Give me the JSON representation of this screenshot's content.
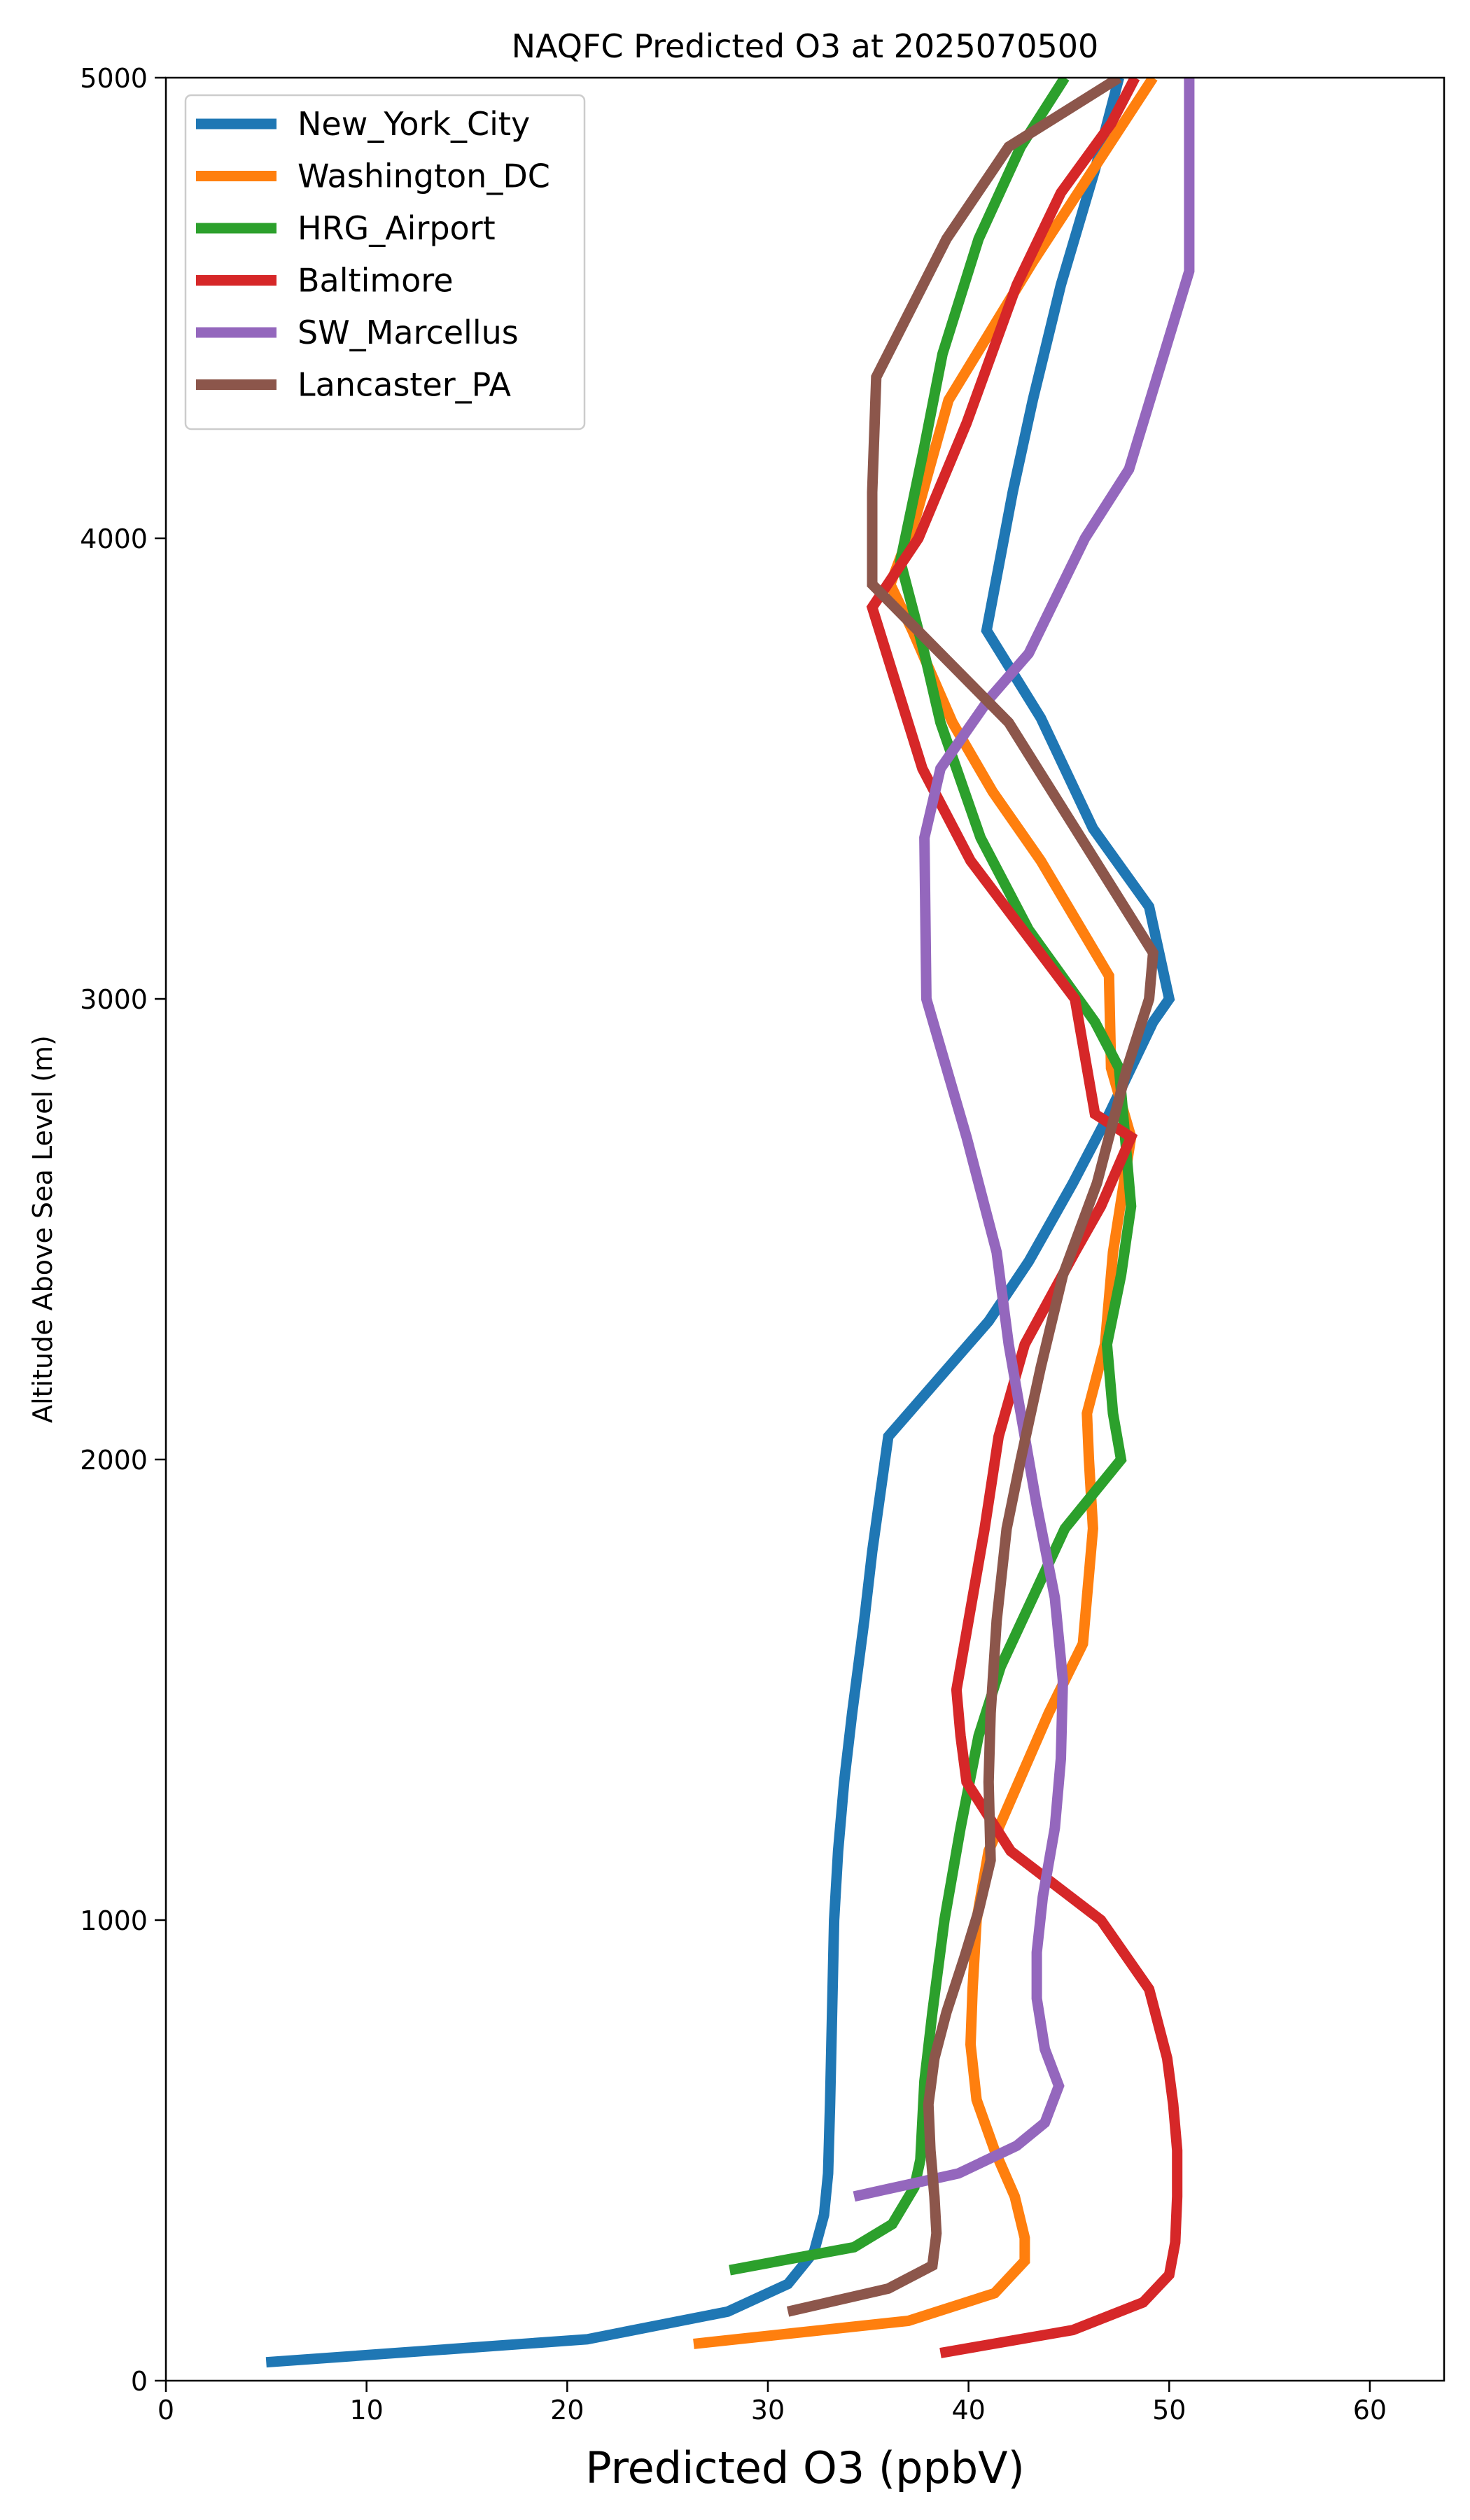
{
  "chart_data": {
    "type": "line",
    "title": "NAQFC Predicted O3 at 2025070500",
    "xlabel": "Predicted O3 (ppbV)",
    "ylabel": "Altitude Above Sea Level (m)",
    "xlim": [
      0,
      63.7
    ],
    "ylim": [
      0,
      5000
    ],
    "xticks": [
      0,
      10,
      20,
      30,
      40,
      50,
      60
    ],
    "yticks": [
      0,
      1000,
      2000,
      3000,
      4000,
      5000
    ],
    "grid": false,
    "legend_position": "upper-left",
    "series": [
      {
        "name": "New_York_City",
        "color": "#1f77b4",
        "points": [
          [
            5.0,
            40
          ],
          [
            21.0,
            90
          ],
          [
            28.0,
            150
          ],
          [
            31.0,
            210
          ],
          [
            32.3,
            280
          ],
          [
            32.8,
            360
          ],
          [
            33.0,
            450
          ],
          [
            33.1,
            600
          ],
          [
            33.2,
            800
          ],
          [
            33.3,
            1000
          ],
          [
            33.5,
            1150
          ],
          [
            33.8,
            1300
          ],
          [
            34.2,
            1450
          ],
          [
            34.8,
            1650
          ],
          [
            35.2,
            1800
          ],
          [
            36.0,
            2050
          ],
          [
            41.0,
            2300
          ],
          [
            43.0,
            2430
          ],
          [
            45.2,
            2600
          ],
          [
            47.0,
            2750
          ],
          [
            49.2,
            2950
          ],
          [
            50.0,
            3000
          ],
          [
            49.0,
            3200
          ],
          [
            46.2,
            3370
          ],
          [
            43.6,
            3610
          ],
          [
            40.9,
            3800
          ],
          [
            42.2,
            4100
          ],
          [
            43.2,
            4300
          ],
          [
            44.6,
            4550
          ],
          [
            46.3,
            4800
          ],
          [
            47.5,
            5000
          ]
        ]
      },
      {
        "name": "Washington_DC",
        "color": "#ff7f0e",
        "points": [
          [
            26.3,
            80
          ],
          [
            37.0,
            130
          ],
          [
            41.3,
            190
          ],
          [
            42.8,
            260
          ],
          [
            42.8,
            310
          ],
          [
            42.3,
            400
          ],
          [
            41.3,
            500
          ],
          [
            40.4,
            610
          ],
          [
            40.1,
            730
          ],
          [
            40.2,
            850
          ],
          [
            40.4,
            1000
          ],
          [
            41.0,
            1150
          ],
          [
            42.5,
            1300
          ],
          [
            44.0,
            1450
          ],
          [
            45.7,
            1600
          ],
          [
            46.2,
            1850
          ],
          [
            46.0,
            2000
          ],
          [
            45.9,
            2100
          ],
          [
            46.8,
            2250
          ],
          [
            47.2,
            2450
          ],
          [
            48.1,
            2700
          ],
          [
            47.1,
            2850
          ],
          [
            47.0,
            3050
          ],
          [
            43.6,
            3300
          ],
          [
            41.2,
            3450
          ],
          [
            39.2,
            3600
          ],
          [
            37.2,
            3800
          ],
          [
            36.1,
            3900
          ],
          [
            37.4,
            4050
          ],
          [
            39.0,
            4300
          ],
          [
            43.2,
            4600
          ],
          [
            46.2,
            4800
          ],
          [
            49.2,
            5000
          ]
        ]
      },
      {
        "name": "HRG_Airport",
        "color": "#2ca02c",
        "points": [
          [
            28.1,
            240
          ],
          [
            34.3,
            290
          ],
          [
            36.2,
            340
          ],
          [
            37.3,
            420
          ],
          [
            37.6,
            480
          ],
          [
            37.8,
            650
          ],
          [
            38.2,
            800
          ],
          [
            38.8,
            1000
          ],
          [
            39.6,
            1200
          ],
          [
            40.5,
            1400
          ],
          [
            41.6,
            1550
          ],
          [
            43.2,
            1700
          ],
          [
            44.8,
            1850
          ],
          [
            47.6,
            2000
          ],
          [
            47.2,
            2100
          ],
          [
            46.9,
            2250
          ],
          [
            47.6,
            2400
          ],
          [
            48.1,
            2550
          ],
          [
            47.7,
            2750
          ],
          [
            47.5,
            2850
          ],
          [
            46.3,
            2950
          ],
          [
            43.0,
            3150
          ],
          [
            40.6,
            3350
          ],
          [
            38.6,
            3600
          ],
          [
            37.8,
            3750
          ],
          [
            36.6,
            3950
          ],
          [
            37.8,
            4200
          ],
          [
            38.7,
            4400
          ],
          [
            40.5,
            4650
          ],
          [
            42.6,
            4850
          ],
          [
            44.8,
            5000
          ]
        ]
      },
      {
        "name": "Baltimore",
        "color": "#d62728",
        "points": [
          [
            38.6,
            60
          ],
          [
            45.2,
            110
          ],
          [
            48.7,
            170
          ],
          [
            50.0,
            230
          ],
          [
            50.3,
            300
          ],
          [
            50.4,
            400
          ],
          [
            50.4,
            500
          ],
          [
            50.2,
            600
          ],
          [
            49.9,
            700
          ],
          [
            49.0,
            850
          ],
          [
            46.6,
            1000
          ],
          [
            42.1,
            1150
          ],
          [
            39.9,
            1300
          ],
          [
            39.6,
            1400
          ],
          [
            39.4,
            1500
          ],
          [
            40.0,
            1650
          ],
          [
            40.8,
            1850
          ],
          [
            41.5,
            2050
          ],
          [
            42.8,
            2250
          ],
          [
            45.3,
            2450
          ],
          [
            46.6,
            2550
          ],
          [
            48.1,
            2700
          ],
          [
            46.3,
            2750
          ],
          [
            45.3,
            3000
          ],
          [
            40.1,
            3300
          ],
          [
            37.7,
            3500
          ],
          [
            35.2,
            3850
          ],
          [
            37.5,
            4000
          ],
          [
            39.9,
            4250
          ],
          [
            42.4,
            4550
          ],
          [
            44.6,
            4750
          ],
          [
            47.1,
            4900
          ],
          [
            48.3,
            5000
          ]
        ]
      },
      {
        "name": "SW_Marcellus",
        "color": "#9467bd",
        "points": [
          [
            34.3,
            400
          ],
          [
            39.5,
            450
          ],
          [
            42.4,
            510
          ],
          [
            43.8,
            560
          ],
          [
            44.5,
            640
          ],
          [
            43.8,
            720
          ],
          [
            43.4,
            830
          ],
          [
            43.4,
            930
          ],
          [
            43.7,
            1050
          ],
          [
            44.3,
            1200
          ],
          [
            44.6,
            1350
          ],
          [
            44.7,
            1520
          ],
          [
            44.3,
            1700
          ],
          [
            43.4,
            1900
          ],
          [
            42.6,
            2100
          ],
          [
            42.0,
            2250
          ],
          [
            41.4,
            2450
          ],
          [
            39.9,
            2700
          ],
          [
            37.9,
            3000
          ],
          [
            37.8,
            3350
          ],
          [
            38.6,
            3500
          ],
          [
            41.0,
            3650
          ],
          [
            43.0,
            3750
          ],
          [
            45.8,
            4000
          ],
          [
            48.0,
            4150
          ],
          [
            51.0,
            4580
          ],
          [
            51.0,
            5000
          ]
        ]
      },
      {
        "name": "Lancaster_PA",
        "color": "#8c564b",
        "points": [
          [
            31.0,
            150
          ],
          [
            36.0,
            200
          ],
          [
            38.2,
            250
          ],
          [
            38.4,
            320
          ],
          [
            38.3,
            400
          ],
          [
            38.1,
            500
          ],
          [
            38.0,
            600
          ],
          [
            38.3,
            700
          ],
          [
            38.9,
            800
          ],
          [
            39.8,
            920
          ],
          [
            40.5,
            1020
          ],
          [
            41.1,
            1130
          ],
          [
            41.0,
            1300
          ],
          [
            41.1,
            1450
          ],
          [
            41.4,
            1650
          ],
          [
            41.9,
            1850
          ],
          [
            42.6,
            2000
          ],
          [
            43.6,
            2200
          ],
          [
            44.7,
            2400
          ],
          [
            46.4,
            2600
          ],
          [
            47.9,
            2850
          ],
          [
            49.0,
            3000
          ],
          [
            49.2,
            3100
          ],
          [
            42.0,
            3600
          ],
          [
            35.2,
            3900
          ],
          [
            35.2,
            4100
          ],
          [
            35.4,
            4350
          ],
          [
            38.9,
            4650
          ],
          [
            42.0,
            4850
          ],
          [
            47.5,
            5000
          ]
        ]
      }
    ]
  }
}
